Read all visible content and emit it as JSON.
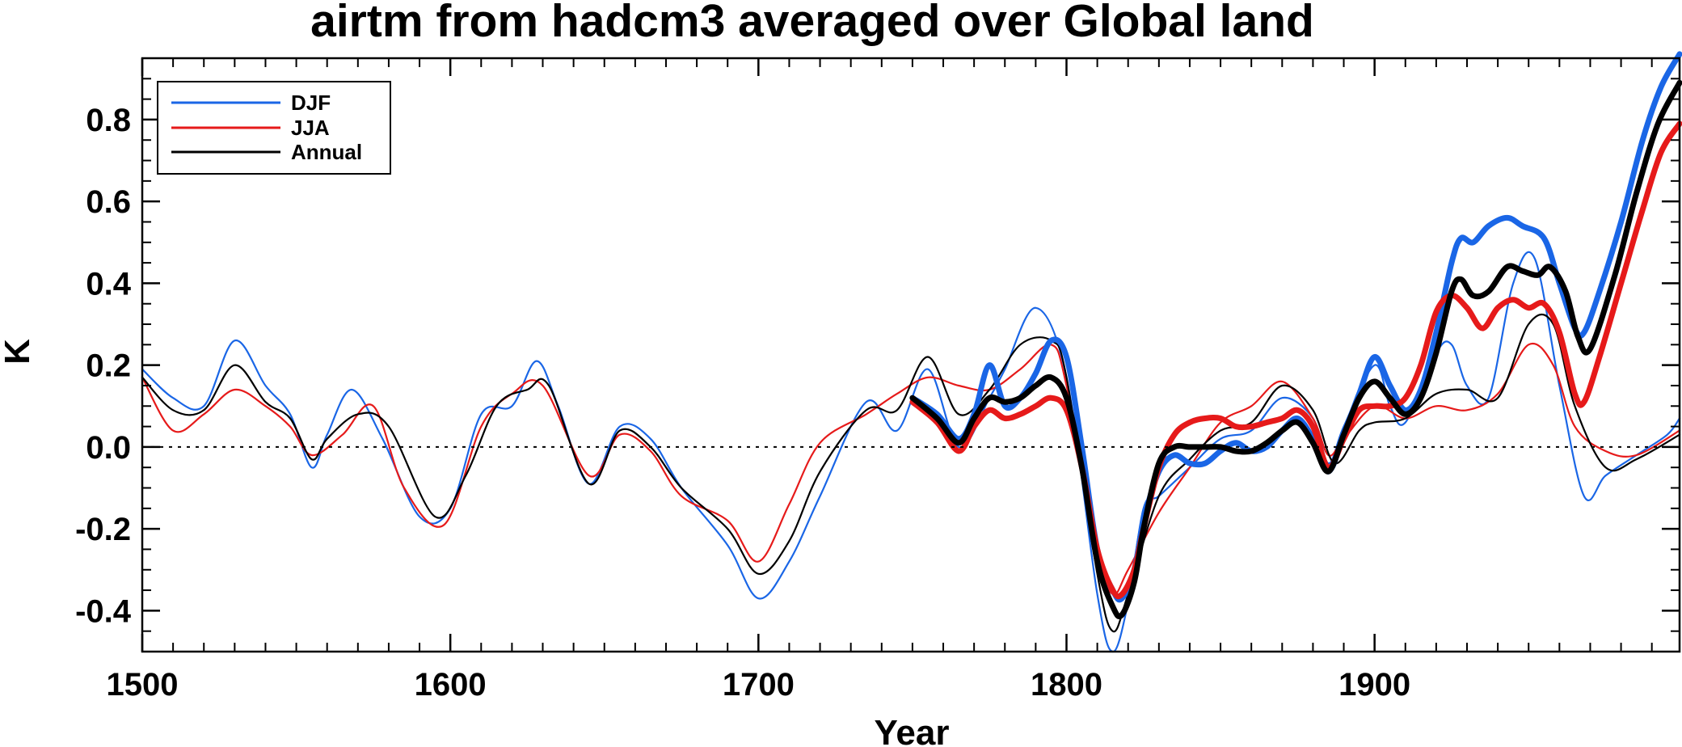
{
  "chart_data": {
    "type": "line",
    "title": "airtm from hadcm3 averaged over Global land",
    "xlabel": "Year",
    "ylabel": "K",
    "xlim": [
      1500,
      1999
    ],
    "ylim": [
      -0.5,
      0.95
    ],
    "x_ticks": [
      1500,
      1600,
      1700,
      1800,
      1900
    ],
    "x_tick_labels": [
      "1500",
      "1600",
      "1700",
      "1800",
      "1900"
    ],
    "y_ticks": [
      -0.4,
      -0.2,
      0.0,
      0.2,
      0.4,
      0.6,
      0.8
    ],
    "y_tick_labels": [
      "-0.4",
      "-0.2",
      "0.0",
      "0.2",
      "0.4",
      "0.6",
      "0.8"
    ],
    "zero_line": true,
    "grid": false,
    "legend": {
      "position": "top-left",
      "entries": [
        {
          "label": "DJF",
          "color": "#1a66e6"
        },
        {
          "label": "JJA",
          "color": "#e61a1a"
        },
        {
          "label": "Annual",
          "color": "#000000"
        }
      ]
    },
    "series": [
      {
        "name": "DJF",
        "style": "thin",
        "color": "#1a66e6",
        "x": [
          1500,
          1510,
          1520,
          1530,
          1540,
          1548,
          1555,
          1560,
          1568,
          1578,
          1590,
          1600,
          1610,
          1620,
          1628,
          1635,
          1645,
          1655,
          1665,
          1675,
          1690,
          1700,
          1710,
          1720,
          1735,
          1745,
          1755,
          1765,
          1775,
          1780,
          1790,
          1800,
          1810,
          1815,
          1820,
          1825,
          1830,
          1840,
          1850,
          1860,
          1870,
          1880,
          1885,
          1890,
          1900,
          1905,
          1910,
          1920,
          1925,
          1930,
          1937,
          1945,
          1952,
          1960,
          1968,
          1975,
          1985,
          1995,
          1999
        ],
        "y": [
          0.19,
          0.12,
          0.1,
          0.26,
          0.15,
          0.08,
          -0.05,
          0.03,
          0.14,
          0.02,
          -0.17,
          -0.15,
          0.08,
          0.1,
          0.21,
          0.1,
          -0.09,
          0.05,
          0.02,
          -0.1,
          -0.24,
          -0.37,
          -0.28,
          -0.12,
          0.11,
          0.04,
          0.19,
          0.0,
          0.12,
          0.19,
          0.34,
          0.17,
          -0.36,
          -0.5,
          -0.38,
          -0.15,
          -0.12,
          -0.05,
          0.02,
          0.04,
          0.12,
          0.07,
          -0.04,
          0.05,
          0.2,
          0.1,
          0.06,
          0.23,
          0.25,
          0.15,
          0.12,
          0.4,
          0.46,
          0.15,
          -0.12,
          -0.07,
          -0.02,
          0.03,
          0.07
        ]
      },
      {
        "name": "JJA",
        "style": "thin",
        "color": "#e61a1a",
        "x": [
          1500,
          1510,
          1520,
          1530,
          1540,
          1548,
          1555,
          1565,
          1575,
          1585,
          1598,
          1610,
          1620,
          1630,
          1645,
          1655,
          1665,
          1675,
          1690,
          1700,
          1710,
          1720,
          1735,
          1745,
          1755,
          1765,
          1775,
          1785,
          1795,
          1800,
          1810,
          1815,
          1820,
          1830,
          1840,
          1850,
          1860,
          1870,
          1880,
          1885,
          1890,
          1900,
          1910,
          1920,
          1930,
          1940,
          1950,
          1958,
          1965,
          1975,
          1985,
          1999
        ],
        "y": [
          0.17,
          0.04,
          0.08,
          0.14,
          0.1,
          0.05,
          -0.02,
          0.03,
          0.1,
          -0.1,
          -0.19,
          0.05,
          0.13,
          0.15,
          -0.07,
          0.03,
          -0.01,
          -0.12,
          -0.18,
          -0.28,
          -0.14,
          0.01,
          0.08,
          0.13,
          0.17,
          0.15,
          0.14,
          0.19,
          0.25,
          0.15,
          -0.25,
          -0.36,
          -0.3,
          -0.16,
          -0.05,
          0.06,
          0.1,
          0.16,
          0.07,
          -0.02,
          0.02,
          0.1,
          0.07,
          0.1,
          0.09,
          0.13,
          0.25,
          0.2,
          0.05,
          -0.01,
          -0.02,
          0.04
        ]
      },
      {
        "name": "Annual",
        "style": "thin",
        "color": "#000000",
        "x": [
          1500,
          1510,
          1520,
          1530,
          1540,
          1548,
          1555,
          1560,
          1570,
          1580,
          1595,
          1605,
          1615,
          1625,
          1632,
          1645,
          1655,
          1665,
          1675,
          1690,
          1700,
          1710,
          1720,
          1735,
          1745,
          1755,
          1765,
          1775,
          1785,
          1795,
          1800,
          1810,
          1815,
          1820,
          1830,
          1840,
          1850,
          1860,
          1870,
          1880,
          1887,
          1895,
          1900,
          1910,
          1920,
          1930,
          1940,
          1950,
          1958,
          1965,
          1975,
          1985,
          1999
        ],
        "y": [
          0.17,
          0.09,
          0.09,
          0.2,
          0.11,
          0.07,
          -0.03,
          0.02,
          0.08,
          0.05,
          -0.17,
          -0.07,
          0.1,
          0.14,
          0.15,
          -0.09,
          0.04,
          0.0,
          -0.1,
          -0.2,
          -0.31,
          -0.23,
          -0.06,
          0.09,
          0.09,
          0.22,
          0.08,
          0.14,
          0.25,
          0.26,
          0.17,
          -0.31,
          -0.45,
          -0.36,
          -0.12,
          -0.03,
          0.04,
          0.06,
          0.15,
          0.09,
          -0.04,
          0.04,
          0.06,
          0.07,
          0.13,
          0.14,
          0.12,
          0.3,
          0.3,
          0.1,
          -0.05,
          -0.03,
          0.03
        ]
      },
      {
        "name": "DJF",
        "style": "thick",
        "color": "#1a66e6",
        "x": [
          1750,
          1758,
          1765,
          1770,
          1775,
          1780,
          1785,
          1790,
          1795,
          1800,
          1805,
          1810,
          1815,
          1818,
          1822,
          1825,
          1830,
          1835,
          1840,
          1845,
          1850,
          1855,
          1860,
          1865,
          1870,
          1875,
          1880,
          1885,
          1890,
          1895,
          1900,
          1905,
          1910,
          1915,
          1920,
          1925,
          1928,
          1932,
          1937,
          1943,
          1948,
          1955,
          1960,
          1965,
          1968,
          1973,
          1980,
          1987,
          1993,
          1999
        ],
        "y": [
          0.12,
          0.08,
          0.02,
          0.08,
          0.2,
          0.1,
          0.12,
          0.18,
          0.26,
          0.22,
          0.0,
          -0.25,
          -0.35,
          -0.37,
          -0.3,
          -0.18,
          -0.06,
          -0.02,
          -0.04,
          -0.04,
          -0.01,
          0.01,
          -0.01,
          0.0,
          0.04,
          0.07,
          0.02,
          -0.06,
          0.03,
          0.13,
          0.22,
          0.15,
          0.09,
          0.14,
          0.28,
          0.45,
          0.51,
          0.5,
          0.54,
          0.56,
          0.54,
          0.51,
          0.4,
          0.29,
          0.28,
          0.38,
          0.55,
          0.75,
          0.88,
          0.96
        ]
      },
      {
        "name": "JJA",
        "style": "thick",
        "color": "#e61a1a",
        "x": [
          1750,
          1758,
          1765,
          1770,
          1775,
          1780,
          1785,
          1790,
          1795,
          1800,
          1805,
          1810,
          1815,
          1818,
          1822,
          1825,
          1830,
          1835,
          1840,
          1845,
          1850,
          1855,
          1860,
          1865,
          1870,
          1875,
          1880,
          1885,
          1890,
          1895,
          1900,
          1905,
          1910,
          1915,
          1920,
          1925,
          1930,
          1935,
          1940,
          1945,
          1950,
          1955,
          1960,
          1965,
          1968,
          1973,
          1980,
          1987,
          1993,
          1999
        ],
        "y": [
          0.11,
          0.06,
          -0.01,
          0.05,
          0.09,
          0.07,
          0.08,
          0.1,
          0.12,
          0.09,
          -0.05,
          -0.25,
          -0.35,
          -0.36,
          -0.3,
          -0.2,
          -0.05,
          0.03,
          0.06,
          0.07,
          0.07,
          0.05,
          0.05,
          0.06,
          0.07,
          0.09,
          0.05,
          -0.05,
          0.02,
          0.09,
          0.1,
          0.1,
          0.12,
          0.2,
          0.33,
          0.37,
          0.34,
          0.29,
          0.34,
          0.36,
          0.34,
          0.35,
          0.28,
          0.13,
          0.11,
          0.22,
          0.4,
          0.58,
          0.72,
          0.79
        ]
      },
      {
        "name": "Annual",
        "style": "thick",
        "color": "#000000",
        "x": [
          1750,
          1758,
          1765,
          1770,
          1775,
          1780,
          1785,
          1790,
          1795,
          1800,
          1805,
          1810,
          1815,
          1818,
          1822,
          1825,
          1830,
          1835,
          1840,
          1845,
          1850,
          1855,
          1860,
          1865,
          1870,
          1875,
          1880,
          1885,
          1890,
          1895,
          1900,
          1905,
          1910,
          1915,
          1920,
          1925,
          1928,
          1932,
          1937,
          1943,
          1948,
          1953,
          1957,
          1962,
          1966,
          1970,
          1978,
          1985,
          1992,
          1999
        ],
        "y": [
          0.12,
          0.07,
          0.01,
          0.07,
          0.12,
          0.11,
          0.12,
          0.15,
          0.17,
          0.12,
          -0.05,
          -0.28,
          -0.39,
          -0.41,
          -0.33,
          -0.2,
          -0.04,
          0.0,
          0.0,
          0.0,
          0.0,
          -0.01,
          -0.01,
          0.01,
          0.04,
          0.06,
          0.01,
          -0.06,
          0.03,
          0.12,
          0.16,
          0.12,
          0.08,
          0.12,
          0.23,
          0.38,
          0.41,
          0.37,
          0.38,
          0.44,
          0.43,
          0.42,
          0.44,
          0.38,
          0.27,
          0.24,
          0.42,
          0.62,
          0.79,
          0.89
        ]
      }
    ]
  }
}
